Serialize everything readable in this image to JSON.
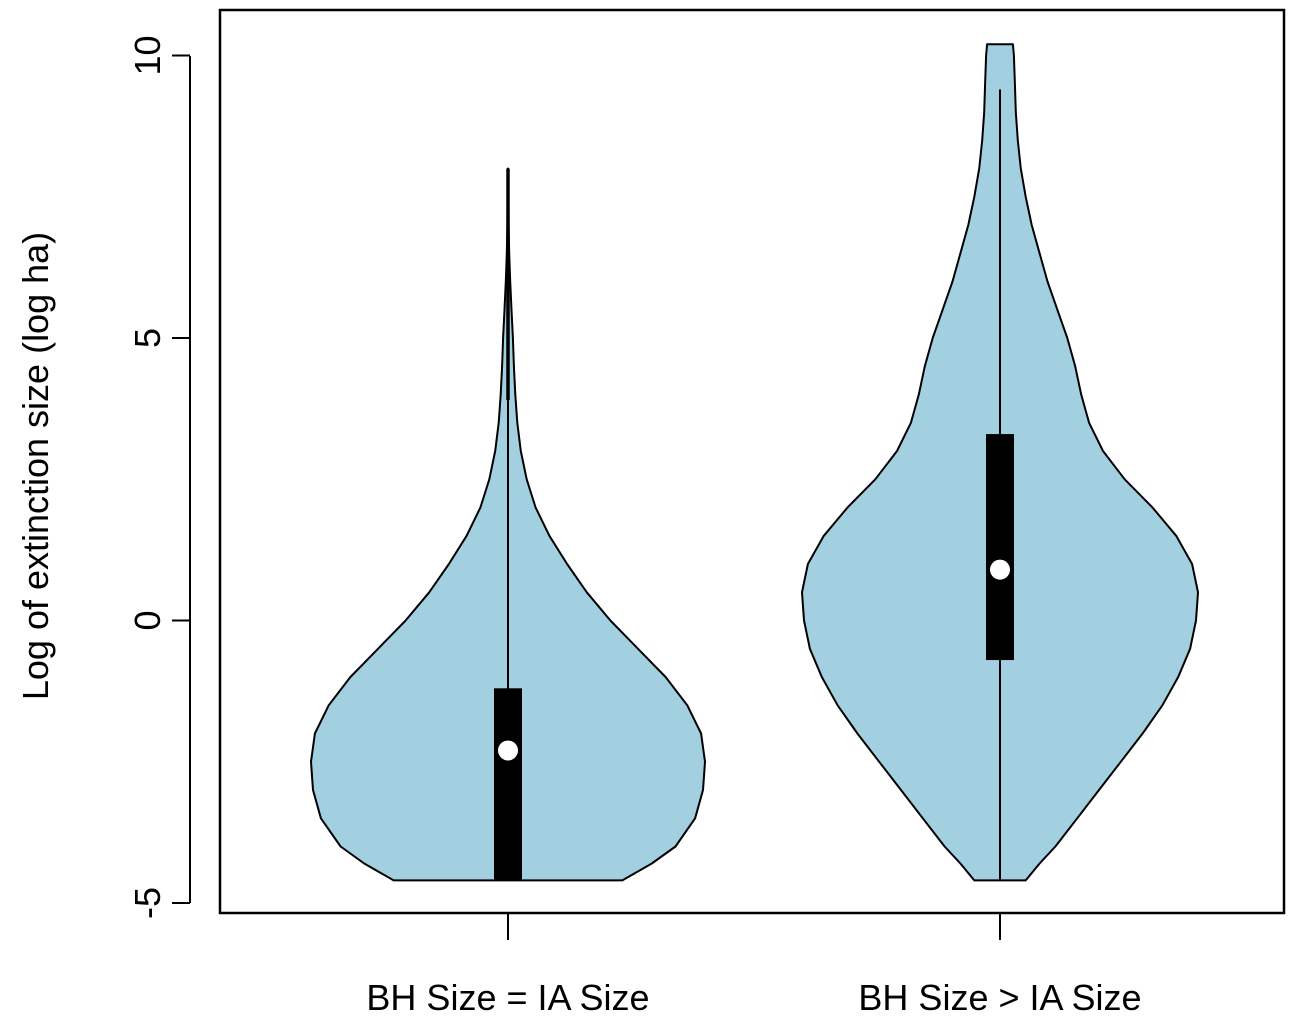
{
  "chart_data": {
    "type": "violin",
    "title": "",
    "xlabel": "",
    "ylabel": "Log of extinction size (log ha)",
    "ylim": [
      -5,
      10.8
    ],
    "yticks": [
      -5,
      0,
      5,
      10
    ],
    "ytick_labels": [
      "-5",
      "0",
      "5",
      "10"
    ],
    "categories": [
      "BH Size = IA Size",
      "BH Size > IA Size"
    ],
    "fill_color": "#a2d0e1",
    "groups": [
      {
        "category": "BH Size = IA Size",
        "min": -4.6,
        "q1": -4.6,
        "median": -2.3,
        "q3": -1.2,
        "whisker_high": 3.9,
        "max": 8.0,
        "density": [
          [
            -4.6,
            0.58
          ],
          [
            -4.3,
            0.73
          ],
          [
            -4.0,
            0.85
          ],
          [
            -3.5,
            0.95
          ],
          [
            -3.0,
            0.99
          ],
          [
            -2.5,
            1.0
          ],
          [
            -2.0,
            0.98
          ],
          [
            -1.5,
            0.91
          ],
          [
            -1.0,
            0.8
          ],
          [
            -0.5,
            0.66
          ],
          [
            0.0,
            0.52
          ],
          [
            0.5,
            0.4
          ],
          [
            1.0,
            0.3
          ],
          [
            1.5,
            0.21
          ],
          [
            2.0,
            0.14
          ],
          [
            2.5,
            0.095
          ],
          [
            3.0,
            0.065
          ],
          [
            3.5,
            0.047
          ],
          [
            4.0,
            0.037
          ],
          [
            4.5,
            0.03
          ],
          [
            5.0,
            0.025
          ],
          [
            5.5,
            0.018
          ],
          [
            6.0,
            0.011
          ],
          [
            6.5,
            0.006
          ],
          [
            7.0,
            0.003
          ],
          [
            7.5,
            0.002
          ],
          [
            8.0,
            0.0
          ]
        ]
      },
      {
        "category": "BH Size > IA Size",
        "min": -4.6,
        "q1": -0.7,
        "median": 0.9,
        "q3": 3.3,
        "whisker_high": 9.4,
        "max": 10.2,
        "density": [
          [
            -4.6,
            0.13
          ],
          [
            -4.3,
            0.2
          ],
          [
            -4.0,
            0.28
          ],
          [
            -3.5,
            0.39
          ],
          [
            -3.0,
            0.5
          ],
          [
            -2.5,
            0.61
          ],
          [
            -2.0,
            0.72
          ],
          [
            -1.5,
            0.82
          ],
          [
            -1.0,
            0.9
          ],
          [
            -0.5,
            0.96
          ],
          [
            0.0,
            0.99
          ],
          [
            0.5,
            1.0
          ],
          [
            1.0,
            0.97
          ],
          [
            1.5,
            0.89
          ],
          [
            2.0,
            0.77
          ],
          [
            2.5,
            0.63
          ],
          [
            3.0,
            0.52
          ],
          [
            3.5,
            0.45
          ],
          [
            4.0,
            0.41
          ],
          [
            4.5,
            0.38
          ],
          [
            5.0,
            0.34
          ],
          [
            5.5,
            0.29
          ],
          [
            6.0,
            0.24
          ],
          [
            6.5,
            0.2
          ],
          [
            7.0,
            0.16
          ],
          [
            7.5,
            0.13
          ],
          [
            8.0,
            0.105
          ],
          [
            8.5,
            0.09
          ],
          [
            9.0,
            0.08
          ],
          [
            9.5,
            0.075
          ],
          [
            10.0,
            0.07
          ],
          [
            10.2,
            0.065
          ]
        ]
      }
    ]
  }
}
